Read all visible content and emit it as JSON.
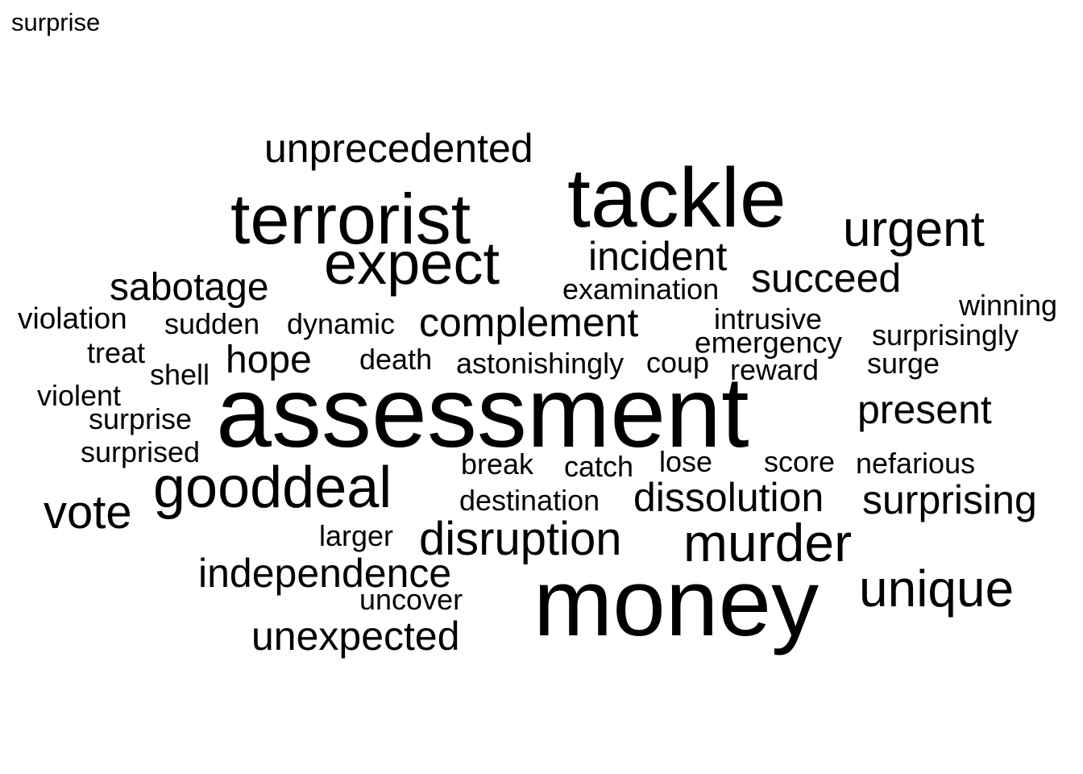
{
  "title": "surprise",
  "words": [
    {
      "text": "assessment",
      "size": "xxl"
    },
    {
      "text": "money",
      "size": "xxl"
    },
    {
      "text": "tackle",
      "size": "xl"
    },
    {
      "text": "terrorist",
      "size": "xl"
    },
    {
      "text": "expect",
      "size": "l"
    },
    {
      "text": "gooddeal",
      "size": "l"
    },
    {
      "text": "murder",
      "size": "m"
    },
    {
      "text": "urgent",
      "size": "m"
    },
    {
      "text": "unique",
      "size": "m"
    },
    {
      "text": "vote",
      "size": "m"
    },
    {
      "text": "disruption",
      "size": "m"
    },
    {
      "text": "unprecedented",
      "size": "s"
    },
    {
      "text": "incident",
      "size": "s"
    },
    {
      "text": "succeed",
      "size": "s"
    },
    {
      "text": "sabotage",
      "size": "s"
    },
    {
      "text": "complement",
      "size": "s"
    },
    {
      "text": "hope",
      "size": "s"
    },
    {
      "text": "present",
      "size": "s"
    },
    {
      "text": "dissolution",
      "size": "s"
    },
    {
      "text": "surprising",
      "size": "s"
    },
    {
      "text": "independence",
      "size": "s"
    },
    {
      "text": "unexpected",
      "size": "s"
    },
    {
      "text": "examination",
      "size": "xs"
    },
    {
      "text": "violation",
      "size": "xs"
    },
    {
      "text": "sudden",
      "size": "xs"
    },
    {
      "text": "dynamic",
      "size": "xs"
    },
    {
      "text": "intrusive",
      "size": "xs"
    },
    {
      "text": "winning",
      "size": "xs"
    },
    {
      "text": "emergency",
      "size": "xs"
    },
    {
      "text": "surprisingly",
      "size": "xs"
    },
    {
      "text": "treat",
      "size": "xs"
    },
    {
      "text": "death",
      "size": "xs"
    },
    {
      "text": "astonishingly",
      "size": "xs"
    },
    {
      "text": "coup",
      "size": "xs"
    },
    {
      "text": "shell",
      "size": "xs"
    },
    {
      "text": "reward",
      "size": "xs"
    },
    {
      "text": "surge",
      "size": "xs"
    },
    {
      "text": "violent",
      "size": "xs"
    },
    {
      "text": "surprise",
      "size": "xs"
    },
    {
      "text": "surprised",
      "size": "xs"
    },
    {
      "text": "break",
      "size": "xs"
    },
    {
      "text": "catch",
      "size": "xs"
    },
    {
      "text": "lose",
      "size": "xs"
    },
    {
      "text": "score",
      "size": "xs"
    },
    {
      "text": "nefarious",
      "size": "xs"
    },
    {
      "text": "destination",
      "size": "xs"
    },
    {
      "text": "larger",
      "size": "xs"
    },
    {
      "text": "uncover",
      "size": "xs"
    }
  ]
}
